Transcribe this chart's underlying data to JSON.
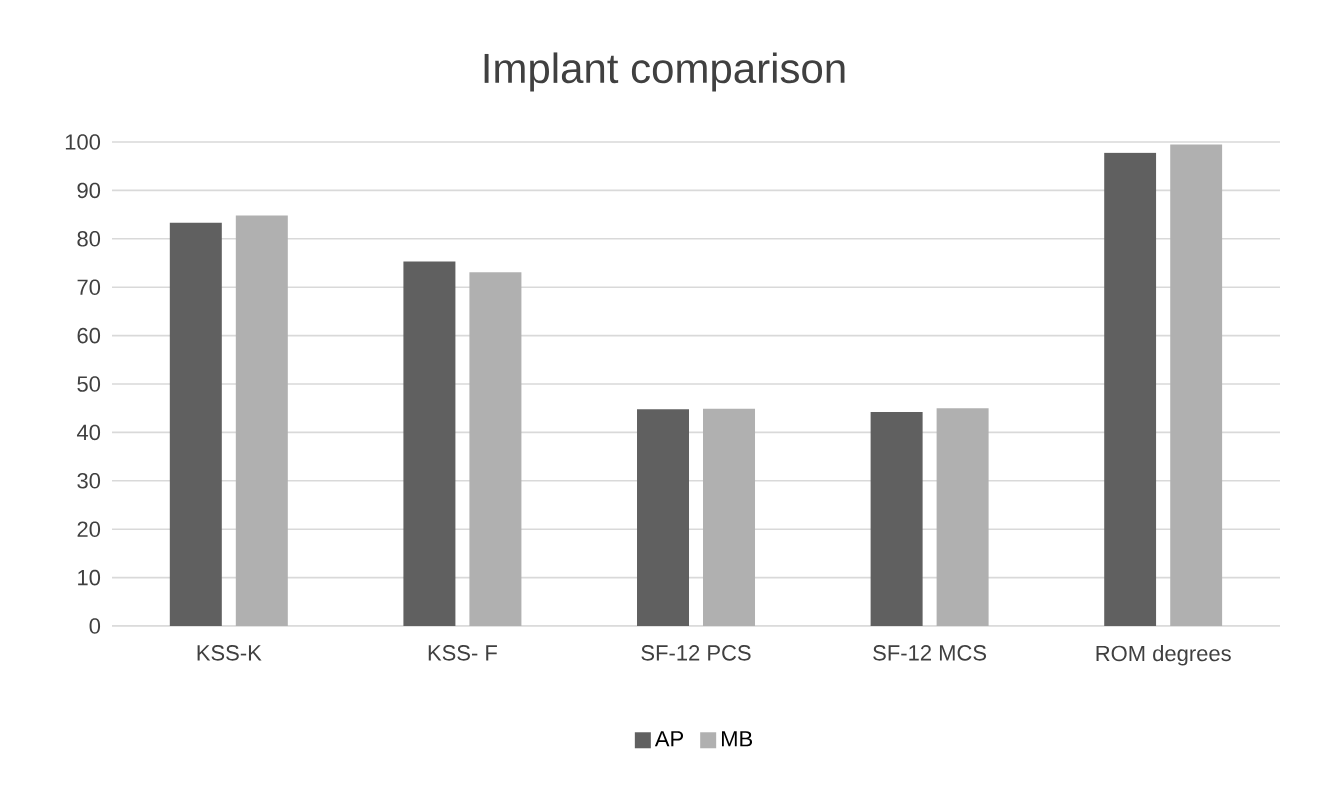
{
  "chart_data": {
    "type": "bar",
    "title": "Implant comparison",
    "categories": [
      "KSS-K",
      "KSS- F",
      "SF-12 PCS",
      "SF-12 MCS",
      "ROM degrees"
    ],
    "series": [
      {
        "name": "AP",
        "color": "#606060",
        "values": [
          83.3,
          75.3,
          44.8,
          44.2,
          97.8
        ]
      },
      {
        "name": "MB",
        "color": "#b0b0b0",
        "values": [
          84.8,
          73.1,
          44.9,
          45.0,
          99.5
        ]
      }
    ],
    "ylim": [
      0,
      100
    ],
    "yticks": [
      0,
      10,
      20,
      30,
      40,
      50,
      60,
      70,
      80,
      90,
      100
    ],
    "grid": "y",
    "legend": "bottom"
  }
}
